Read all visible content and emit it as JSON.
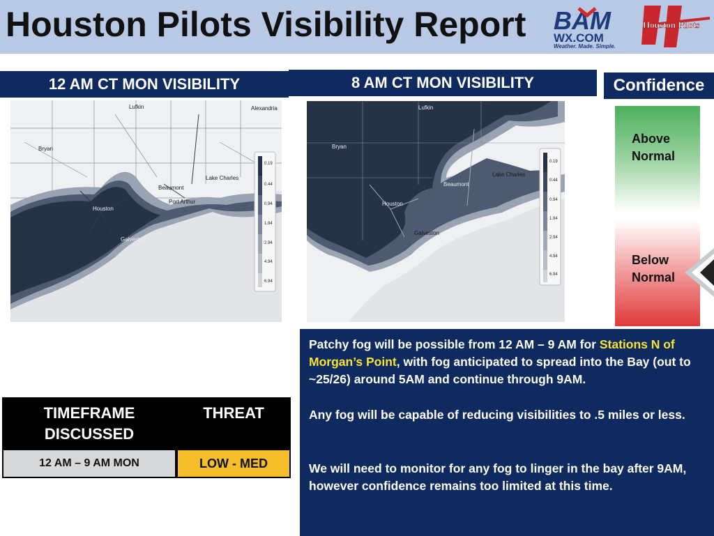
{
  "header": {
    "title": "Houston Pilots Visibility Report",
    "logo_bam": {
      "top": "BAM",
      "site": "WX.COM",
      "tagline": "Weather. Made. Simple."
    },
    "logo_hp": {
      "text": "Houston Pilots"
    }
  },
  "maps": [
    {
      "title": "12 AM CT MON VISIBILITY",
      "place_labels": [
        "Lufkin",
        "Alexandria",
        "Bryan",
        "Beaumont",
        "Lake Charles",
        "Port Arthur",
        "Houston",
        "Galveston"
      ],
      "legend_ticks": [
        "0.19",
        "0.44",
        "0.94",
        "1.94",
        "2.94",
        "4.94",
        "6.94"
      ]
    },
    {
      "title": "8 AM CT MON VISIBILITY",
      "place_labels": [
        "Lufkin",
        "Bryan",
        "Lake Charles",
        "Beaumont",
        "Houston",
        "Galveston"
      ],
      "legend_ticks": [
        "0.19",
        "0.44",
        "0.94",
        "1.94",
        "2.94",
        "4.94",
        "6.94"
      ]
    }
  ],
  "confidence": {
    "title": "Confidence",
    "above": "Above Normal",
    "below": "Below Normal",
    "indicator": "Below Normal"
  },
  "discussion": {
    "p1_before": "Patchy fog will be possible from 12 AM – 9 AM for ",
    "p1_highlight": "Stations N of Morgan’s Point",
    "p1_after": ", with fog anticipated to spread into the Bay (out to ~25/26) around 5AM and continue through 9AM.",
    "p2": "Any fog will be capable of reducing visibilities to .5 miles or less.",
    "p3": "We will need to monitor for any fog to linger in the bay after 9AM, however confidence remains too limited at this time."
  },
  "threat_table": {
    "col1_header": "TIMEFRAME DISCUSSED",
    "col2_header": "THREAT",
    "rows": [
      {
        "timeframe": "12 AM – 9 AM MON",
        "threat": "LOW - MED"
      }
    ]
  },
  "colors": {
    "header_bg": "#b8c9e6",
    "panel_navy": "#0f2a5e",
    "fog_dark": "#263246",
    "threat_fill": "#f5be2a",
    "highlight_text": "#f5e23a"
  }
}
